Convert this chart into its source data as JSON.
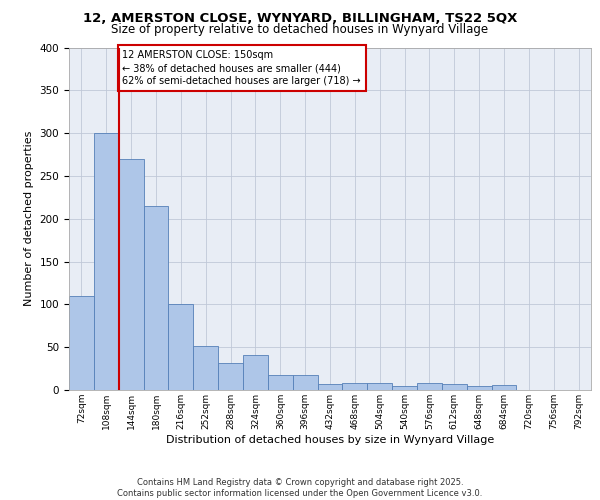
{
  "title_line1": "12, AMERSTON CLOSE, WYNYARD, BILLINGHAM, TS22 5QX",
  "title_line2": "Size of property relative to detached houses in Wynyard Village",
  "xlabel": "Distribution of detached houses by size in Wynyard Village",
  "ylabel": "Number of detached properties",
  "bar_values": [
    110,
    300,
    270,
    215,
    100,
    51,
    31,
    41,
    17,
    17,
    7,
    8,
    8,
    5,
    8,
    7,
    5,
    6,
    0,
    0,
    0
  ],
  "x_tick_labels": [
    "72sqm",
    "108sqm",
    "144sqm",
    "180sqm",
    "216sqm",
    "252sqm",
    "288sqm",
    "324sqm",
    "360sqm",
    "396sqm",
    "432sqm",
    "468sqm",
    "504sqm",
    "540sqm",
    "576sqm",
    "612sqm",
    "648sqm",
    "684sqm",
    "720sqm",
    "756sqm",
    "792sqm"
  ],
  "bar_color": "#aec6e8",
  "bar_edge_color": "#5580b8",
  "red_line_x": 2,
  "annotation_text": "12 AMERSTON CLOSE: 150sqm\n← 38% of detached houses are smaller (444)\n62% of semi-detached houses are larger (718) →",
  "annotation_box_color": "#ffffff",
  "annotation_box_edge": "#cc0000",
  "red_line_color": "#cc0000",
  "ylim": [
    0,
    400
  ],
  "yticks": [
    0,
    50,
    100,
    150,
    200,
    250,
    300,
    350,
    400
  ],
  "grid_color": "#c0c8d8",
  "background_color": "#e8edf5",
  "footer_text": "Contains HM Land Registry data © Crown copyright and database right 2025.\nContains public sector information licensed under the Open Government Licence v3.0.",
  "fig_bg": "#ffffff"
}
